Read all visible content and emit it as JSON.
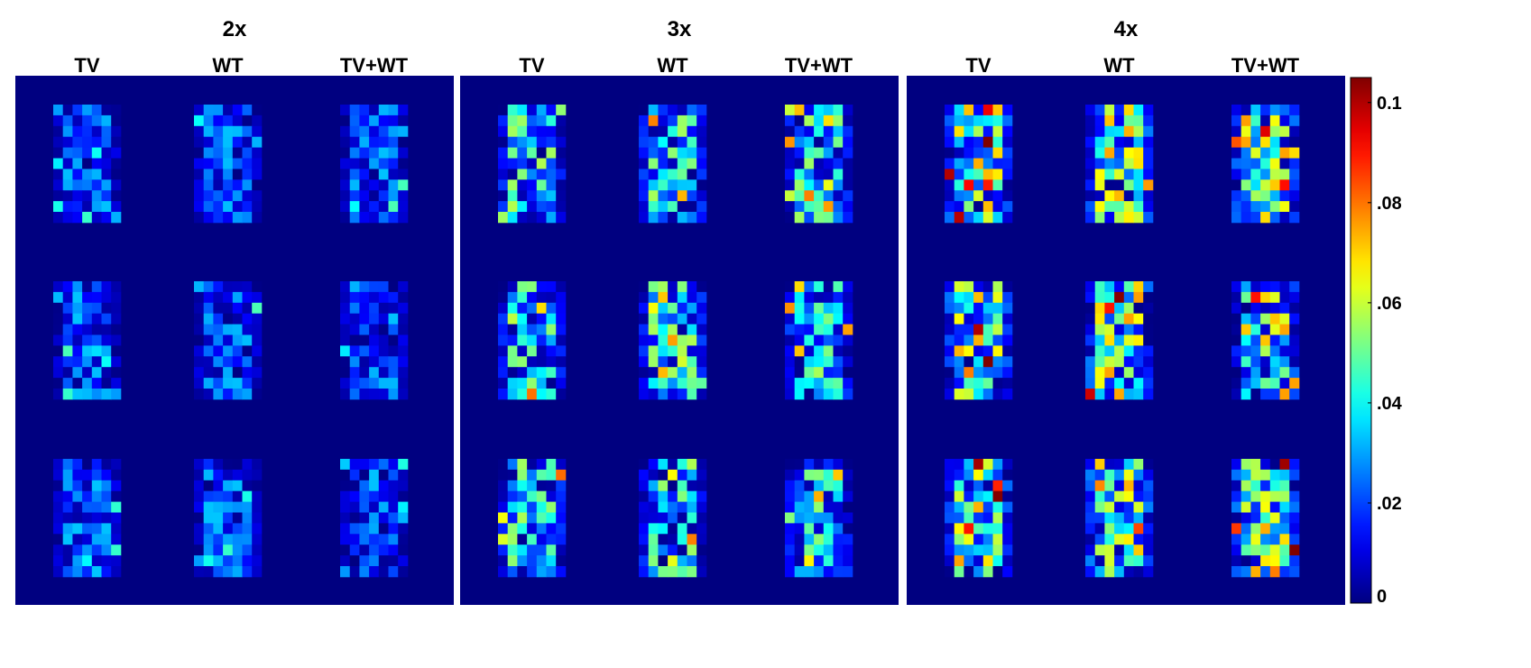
{
  "chart_data": {
    "type": "heatmap",
    "panels": [
      {
        "title": "2x",
        "columns": [
          "TV",
          "WT",
          "TV+WT"
        ]
      },
      {
        "title": "3x",
        "columns": [
          "TV",
          "WT",
          "TV+WT"
        ]
      },
      {
        "title": "4x",
        "columns": [
          "TV",
          "WT",
          "TV+WT"
        ]
      }
    ],
    "grid": {
      "rows": 3,
      "cell_rows": 11,
      "cell_cols": 7
    },
    "colorbar": {
      "colormap": "jet",
      "range": [
        0,
        0.105
      ],
      "ticks": [
        0,
        0.02,
        0.04,
        0.06,
        0.08,
        0.1
      ],
      "tick_labels": [
        "0",
        ".02",
        ".04",
        ".06",
        ".08",
        "0.1"
      ]
    },
    "background_value": 0.0,
    "notes": "Each panel shows 3 rows x 3 methods of small heat-map images (11x7 cells) of error magnitude; cell values estimated from color."
  }
}
